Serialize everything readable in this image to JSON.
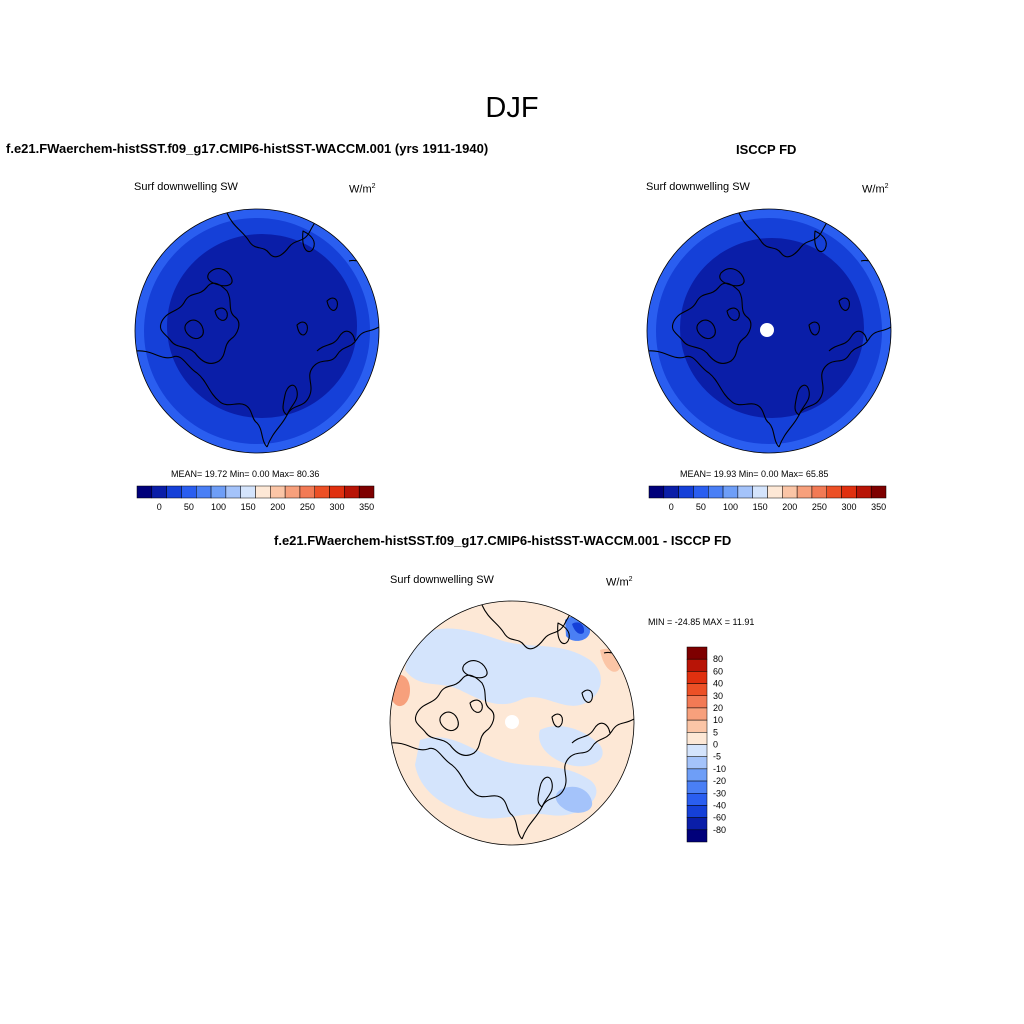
{
  "season": "DJF",
  "panels": {
    "model": {
      "title": "f.e21.FWaerchem-histSST.f09_g17.CMIP6-histSST-WACCM.001 (yrs 1911-1940)",
      "variable": "Surf downwelling SW",
      "units": "W/m",
      "units_exp": "2",
      "stats": "MEAN=  19.72  Min=    0.00  Max=  80.36"
    },
    "obs": {
      "title": "ISCCP FD",
      "variable": "Surf downwelling SW",
      "units": "W/m",
      "units_exp": "2",
      "stats": "MEAN=  19.93  Min=    0.00  Max=  65.85"
    },
    "diff": {
      "title": "f.e21.FWaerchem-histSST.f09_g17.CMIP6-histSST-WACCM.001 - ISCCP FD",
      "variable": "Surf downwelling SW",
      "units": "W/m",
      "units_exp": "2",
      "stats": "MIN = -24.85 MAX =  11.91"
    }
  },
  "colorbar_main": {
    "tick_labels": [
      "0",
      "50",
      "100",
      "150",
      "200",
      "250",
      "300",
      "350"
    ],
    "colors": [
      "#00007a",
      "#0a1ea8",
      "#1540d8",
      "#2a5ef0",
      "#4a7ff5",
      "#6e9ef7",
      "#a4c3fa",
      "#d4e4fc",
      "#fde8d6",
      "#fbc5a6",
      "#f7a07c",
      "#f27a55",
      "#ec5026",
      "#e0300f",
      "#b81406",
      "#7e0000"
    ]
  },
  "colorbar_diff": {
    "tick_labels": [
      "80",
      "60",
      "40",
      "30",
      "20",
      "10",
      "5",
      "0",
      "-5",
      "-10",
      "-20",
      "-30",
      "-40",
      "-60",
      "-80"
    ],
    "colors": [
      "#7e0000",
      "#b81406",
      "#e0300f",
      "#ec5026",
      "#f27a55",
      "#f7a07c",
      "#fbc5a6",
      "#fde8d6",
      "#d4e4fc",
      "#a4c3fa",
      "#6e9ef7",
      "#4a7ff5",
      "#2a5ef0",
      "#1540d8",
      "#0a1ea8",
      "#00007a"
    ]
  }
}
